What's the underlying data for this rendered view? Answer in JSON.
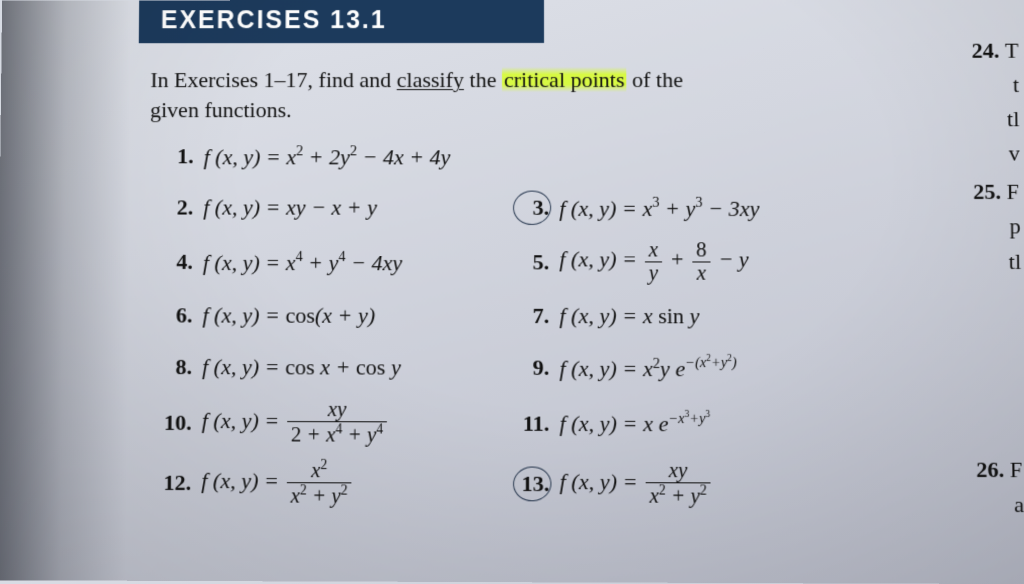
{
  "header": {
    "title": "EXERCISES 13.1"
  },
  "instruction": {
    "pre": "In Exercises 1–17, find and ",
    "underline_word": "classify",
    "mid": " the ",
    "highlight": "critical points",
    "post": " of the",
    "line2": "given functions."
  },
  "right_fragments": {
    "r24_num": "24.",
    "r24_txt": "T",
    "frag_t": "t",
    "frag_tl": "tl",
    "frag_v": "v",
    "r25_num": "25.",
    "r25_txt": "F",
    "frag_p": "p",
    "frag_tl2": "tl",
    "r26_num": "26.",
    "r26_txt": "F",
    "frag_a": "a"
  },
  "problems": {
    "p1": {
      "num": "1.",
      "expr_html": "f (x, y) = x<sup>2</sup> + 2y<sup>2</sup> − 4x + 4y"
    },
    "p2": {
      "num": "2.",
      "expr_html": "f (x, y) = xy − x + y"
    },
    "p3": {
      "num": "3.",
      "expr_html": "f (x, y) = x<sup>3</sup> + y<sup>3</sup> − 3xy",
      "circled": true
    },
    "p4": {
      "num": "4.",
      "expr_html": "f (x, y) = x<sup>4</sup> + y<sup>4</sup> − 4xy"
    },
    "p5": {
      "num": "5.",
      "expr_html": "f (x, y) = <span class=\"frac\"><span class=\"num\">x</span><span class=\"den\">y</span></span> + <span class=\"frac\"><span class=\"num rm\">8</span><span class=\"den\">x</span></span> − y"
    },
    "p6": {
      "num": "6.",
      "expr_html": "f (x, y) = <span class=\"rm\">cos</span>(x + y)"
    },
    "p7": {
      "num": "7.",
      "expr_html": "f (x, y) = x <span class=\"rm\">sin</span> y"
    },
    "p8": {
      "num": "8.",
      "expr_html": "f (x, y) = <span class=\"rm\">cos</span> x + <span class=\"rm\">cos</span> y"
    },
    "p9": {
      "num": "9.",
      "expr_html": "f (x, y) = x<sup>2</sup>y e<sup class=\"sup-it\">−(x<sup>2</sup>+y<sup>2</sup>)</sup>"
    },
    "p10": {
      "num": "10.",
      "expr_html": "f (x, y) = <span class=\"frac\"><span class=\"num\">xy</span><span class=\"den\"><span class=\"rm\">2</span> + x<sup>4</sup> + y<sup>4</sup></span></span>"
    },
    "p11": {
      "num": "11.",
      "expr_html": "f (x, y) = x e<sup class=\"sup-it\">−x<sup>3</sup>+y<sup>3</sup></sup>"
    },
    "p12": {
      "num": "12.",
      "expr_html": "f (x, y) = <span class=\"frac\"><span class=\"num\">x<sup>2</sup></span><span class=\"den\">x<sup>2</sup> + y<sup>2</sup></span></span>"
    },
    "p13": {
      "num": "13.",
      "expr_html": "f (x, y) = <span class=\"frac\"><span class=\"num\">xy</span><span class=\"den\">x<sup>2</sup> + y<sup>2</sup></span></span>",
      "circled": true
    }
  },
  "style": {
    "header_bg": "#1c3a5c",
    "header_fg": "#ffffff",
    "text_color": "#111111",
    "highlight_color": "#d8ff28",
    "page_bg_from": "#e0e3ea",
    "page_bg_to": "#b8bbc8",
    "font_body": "Times New Roman",
    "font_header": "Arial Black",
    "header_fontsize": 25,
    "body_fontsize": 22,
    "circle_color": "#2b3b52"
  }
}
